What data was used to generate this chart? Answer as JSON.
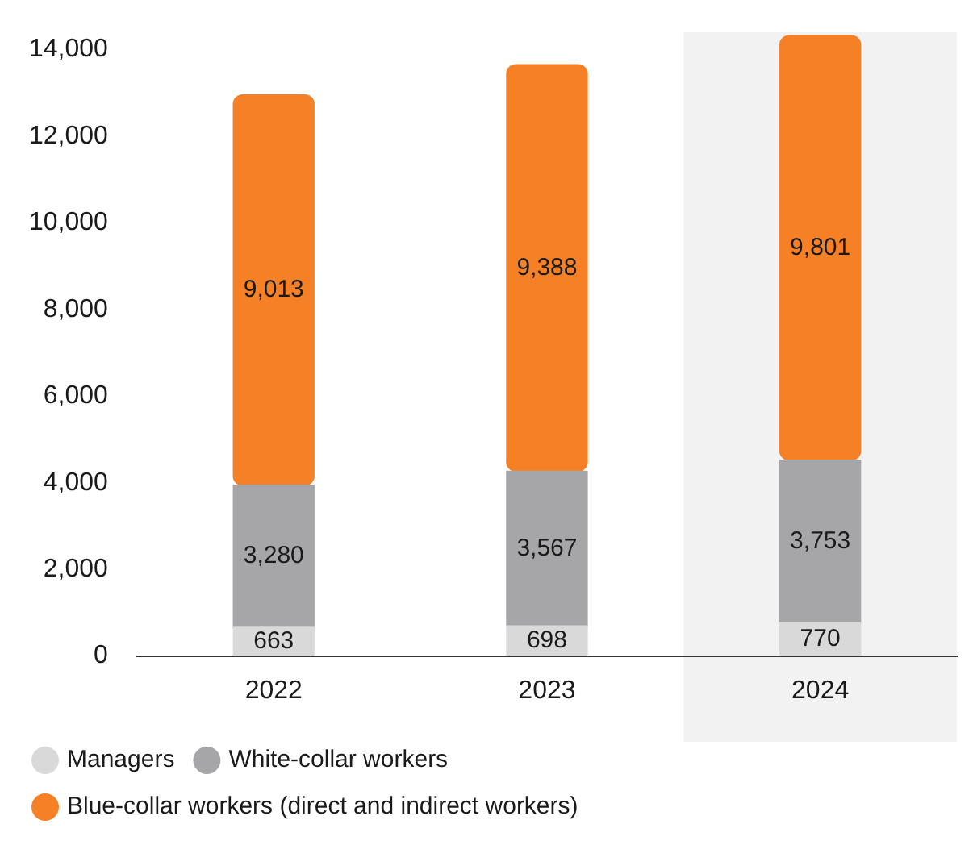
{
  "chart_data": {
    "type": "bar",
    "stacked": true,
    "categories": [
      "2022",
      "2023",
      "2024"
    ],
    "series": [
      {
        "name": "Managers",
        "color": "#d9d9d9",
        "values": [
          663,
          698,
          770
        ],
        "value_labels": [
          "663",
          "698",
          "770"
        ]
      },
      {
        "name": "White-collar workers",
        "color": "#a6a6a8",
        "values": [
          3280,
          3567,
          3753
        ],
        "value_labels": [
          "3,280",
          "3,567",
          "3,753"
        ]
      },
      {
        "name": "Blue-collar workers (direct and indirect workers)",
        "color": "#f58025",
        "values": [
          9013,
          9388,
          9801
        ],
        "value_labels": [
          "9,013",
          "9,388",
          "9,801"
        ]
      }
    ],
    "ylim": [
      0,
      14400
    ],
    "yticks": [
      0,
      {
        "value": 2000,
        "label": "2,000"
      },
      {
        "value": 4000,
        "label": "4,000"
      },
      {
        "value": 6000,
        "label": "6,000"
      },
      {
        "value": 8000,
        "label": "8,000"
      },
      {
        "value": 10000,
        "label": "10,000"
      },
      {
        "value": 12000,
        "label": "12,000"
      },
      {
        "value": 14000,
        "label": "14,000"
      }
    ],
    "grid": false,
    "legend": "bottom",
    "bands": [
      {
        "axis": "x",
        "from": "2024",
        "to": "2024",
        "color": "#f1f2f1"
      }
    ]
  }
}
